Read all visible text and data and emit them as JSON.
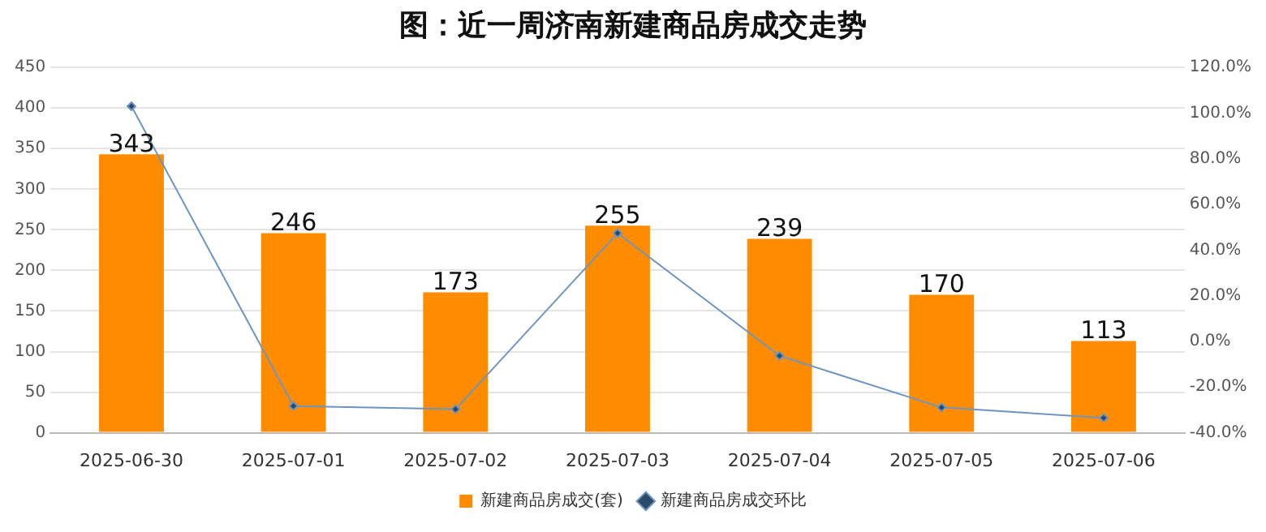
{
  "chart_data": {
    "type": "bar",
    "title": "图：近一周济南新建商品房成交走势",
    "categories": [
      "2025-06-30",
      "2025-07-01",
      "2025-07-02",
      "2025-07-03",
      "2025-07-04",
      "2025-07-05",
      "2025-07-06"
    ],
    "series": [
      {
        "name": "新建商品房成交(套)",
        "color": "#ff8c00",
        "values": [
          343,
          246,
          173,
          255,
          239,
          170,
          113
        ],
        "value_labels": [
          "343",
          "246",
          "173",
          "255",
          "239",
          "170",
          "113"
        ]
      },
      {
        "name": "新建商品房成交环比",
        "type": "line",
        "axis": "y2",
        "color": "#6e95c0",
        "marker": "diamond",
        "values": [
          103,
          -28.3,
          -29.7,
          47.4,
          -6.3,
          -28.9,
          -33.5
        ]
      }
    ],
    "ylim": [
      0,
      450
    ],
    "yticks": [
      0,
      50,
      100,
      150,
      200,
      250,
      300,
      350,
      400,
      450
    ],
    "y2lim": [
      -40,
      120
    ],
    "y2ticks": [
      {
        "value": -40,
        "label": "-40.0%"
      },
      {
        "value": -20,
        "label": "-20.0%"
      },
      {
        "value": 0,
        "label": "0.0%"
      },
      {
        "value": 20,
        "label": "20.0%"
      },
      {
        "value": 40,
        "label": "40.0%"
      },
      {
        "value": 60,
        "label": "60.0%"
      },
      {
        "value": 80,
        "label": "80.0%"
      },
      {
        "value": 100,
        "label": "100.0%"
      },
      {
        "value": 120,
        "label": "120.0%"
      }
    ],
    "grid": "y",
    "legend": "bottom"
  }
}
